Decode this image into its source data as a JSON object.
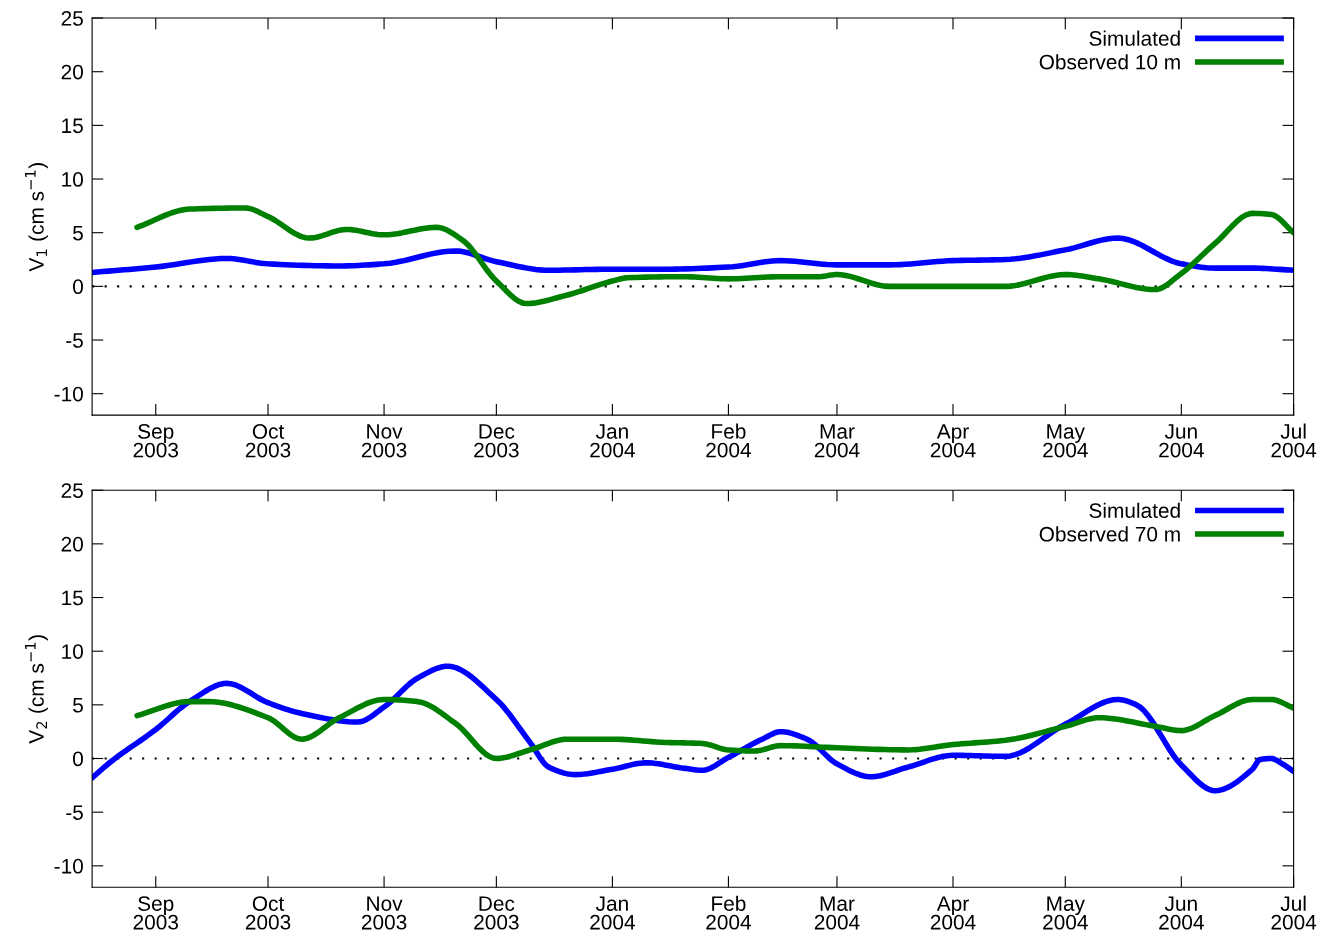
{
  "chart_data": [
    {
      "type": "line",
      "ylabel": "V$_{1}$ (cm s$^{−1}$)",
      "xlim": [
        "2003-08-15",
        "2004-07-01"
      ],
      "ylim": [
        -12,
        25
      ],
      "yticks": [
        -10,
        -5,
        0,
        5,
        10,
        15,
        20,
        25
      ],
      "xticks": [
        {
          "value": "2003-09-01",
          "label": "Sep\n2003"
        },
        {
          "value": "2003-10-01",
          "label": "Oct\n2003"
        },
        {
          "value": "2003-11-01",
          "label": "Nov\n2003"
        },
        {
          "value": "2003-12-01",
          "label": "Dec\n2003"
        },
        {
          "value": "2004-01-01",
          "label": "Jan\n2004"
        },
        {
          "value": "2004-02-01",
          "label": "Feb\n2004"
        },
        {
          "value": "2004-03-01",
          "label": "Mar\n2004"
        },
        {
          "value": "2004-04-01",
          "label": "Apr\n2004"
        },
        {
          "value": "2004-05-01",
          "label": "May\n2004"
        },
        {
          "value": "2004-06-01",
          "label": "Jun\n2004"
        },
        {
          "value": "2004-07-01",
          "label": "Jul\n2004"
        }
      ],
      "legend": "top right",
      "grid": false,
      "line_style": "solid",
      "marker": "none",
      "ref_lines": [
        {
          "axis": "y",
          "value": 0,
          "color": "#000000",
          "line_style": "dotted"
        }
      ],
      "series": [
        {
          "name": "Simulated",
          "color": "#0000ff",
          "x": [
            "2003-08-15",
            "2003-09-01",
            "2003-09-20",
            "2003-10-01",
            "2003-10-20",
            "2003-11-01",
            "2003-11-20",
            "2003-12-01",
            "2003-12-15",
            "2004-01-01",
            "2004-01-15",
            "2004-02-01",
            "2004-02-15",
            "2004-03-01",
            "2004-03-15",
            "2004-04-01",
            "2004-04-15",
            "2004-05-01",
            "2004-05-15",
            "2004-06-01",
            "2004-06-10",
            "2004-06-20",
            "2004-07-01"
          ],
          "values": [
            1.3,
            1.8,
            2.6,
            2.1,
            1.9,
            2.1,
            3.3,
            2.3,
            1.5,
            1.6,
            1.6,
            1.8,
            2.4,
            2.0,
            2.0,
            2.4,
            2.5,
            3.4,
            4.5,
            2.1,
            1.7,
            1.7,
            1.5
          ]
        },
        {
          "name": "Observed 10 m",
          "color": "#008000",
          "x": [
            "2003-08-27",
            "2003-09-10",
            "2003-09-25",
            "2003-10-01",
            "2003-10-12",
            "2003-10-22",
            "2003-11-01",
            "2003-11-15",
            "2003-11-22",
            "2003-12-01",
            "2003-12-09",
            "2003-12-20",
            "2004-01-01",
            "2004-01-05",
            "2004-01-20",
            "2004-02-01",
            "2004-02-15",
            "2004-02-25",
            "2004-03-01",
            "2004-03-15",
            "2004-04-01",
            "2004-04-15",
            "2004-05-01",
            "2004-05-10",
            "2004-05-25",
            "2004-06-01",
            "2004-06-10",
            "2004-06-20",
            "2004-06-25",
            "2004-07-01"
          ],
          "values": [
            5.5,
            7.2,
            7.3,
            6.5,
            4.5,
            5.3,
            4.8,
            5.5,
            4.3,
            0.5,
            -1.6,
            -0.8,
            0.5,
            0.8,
            0.9,
            0.7,
            0.9,
            0.9,
            1.1,
            0.0,
            0.0,
            0.0,
            1.1,
            0.7,
            -0.3,
            1.2,
            4.0,
            6.8,
            6.7,
            5.0
          ]
        }
      ]
    },
    {
      "type": "line",
      "ylabel": "V$_{2}$ (cm s$^{−1}$)",
      "xlim": [
        "2003-08-15",
        "2004-07-01"
      ],
      "ylim": [
        -12,
        25
      ],
      "yticks": [
        -10,
        -5,
        0,
        5,
        10,
        15,
        20,
        25
      ],
      "xticks": [
        {
          "value": "2003-09-01",
          "label": "Sep\n2003"
        },
        {
          "value": "2003-10-01",
          "label": "Oct\n2003"
        },
        {
          "value": "2003-11-01",
          "label": "Nov\n2003"
        },
        {
          "value": "2003-12-01",
          "label": "Dec\n2003"
        },
        {
          "value": "2004-01-01",
          "label": "Jan\n2004"
        },
        {
          "value": "2004-02-01",
          "label": "Feb\n2004"
        },
        {
          "value": "2004-03-01",
          "label": "Mar\n2004"
        },
        {
          "value": "2004-04-01",
          "label": "Apr\n2004"
        },
        {
          "value": "2004-05-01",
          "label": "May\n2004"
        },
        {
          "value": "2004-06-01",
          "label": "Jun\n2004"
        },
        {
          "value": "2004-07-01",
          "label": "Jul\n2004"
        }
      ],
      "legend": "top right",
      "grid": false,
      "line_style": "solid",
      "marker": "none",
      "ref_lines": [
        {
          "axis": "y",
          "value": 0,
          "color": "#000000",
          "line_style": "dotted"
        }
      ],
      "series": [
        {
          "name": "Simulated",
          "color": "#0000ff",
          "x": [
            "2003-08-15",
            "2003-08-20",
            "2003-09-01",
            "2003-09-10",
            "2003-09-20",
            "2003-10-01",
            "2003-10-10",
            "2003-10-25",
            "2003-11-01",
            "2003-11-10",
            "2003-11-18",
            "2003-12-01",
            "2003-12-10",
            "2003-12-15",
            "2003-12-22",
            "2004-01-01",
            "2004-01-10",
            "2004-01-20",
            "2004-01-25",
            "2004-02-01",
            "2004-02-10",
            "2004-02-15",
            "2004-02-22",
            "2004-03-01",
            "2004-03-10",
            "2004-03-20",
            "2004-04-01",
            "2004-04-15",
            "2004-05-01",
            "2004-05-15",
            "2004-05-20",
            "2004-06-01",
            "2004-06-10",
            "2004-06-20",
            "2004-06-22",
            "2004-06-25",
            "2004-06-28",
            "2004-07-01"
          ],
          "values": [
            -1.8,
            -0.3,
            2.7,
            5.3,
            7.0,
            5.2,
            4.2,
            3.4,
            4.8,
            7.5,
            8.6,
            5.5,
            1.5,
            -0.8,
            -1.5,
            -1.0,
            -0.4,
            -0.9,
            -1.1,
            0.1,
            1.8,
            2.5,
            1.8,
            -0.5,
            -1.7,
            -0.8,
            0.3,
            0.2,
            3.2,
            5.5,
            5.0,
            -0.6,
            -3.0,
            -1.0,
            -0.1,
            0.0,
            -0.5,
            -1.2
          ]
        },
        {
          "name": "Observed 70 m",
          "color": "#008000",
          "x": [
            "2003-08-27",
            "2003-09-10",
            "2003-09-15",
            "2003-10-01",
            "2003-10-10",
            "2003-10-20",
            "2003-11-01",
            "2003-11-10",
            "2003-11-20",
            "2003-12-01",
            "2003-12-10",
            "2003-12-20",
            "2004-01-01",
            "2004-01-15",
            "2004-01-25",
            "2004-02-01",
            "2004-02-08",
            "2004-02-15",
            "2004-03-01",
            "2004-03-20",
            "2004-04-01",
            "2004-04-15",
            "2004-05-01",
            "2004-05-10",
            "2004-05-25",
            "2004-06-01",
            "2004-06-10",
            "2004-06-20",
            "2004-06-25",
            "2004-07-01"
          ],
          "values": [
            4.0,
            5.3,
            5.3,
            3.8,
            1.8,
            3.8,
            5.5,
            5.3,
            3.3,
            0.0,
            0.8,
            1.8,
            1.8,
            1.5,
            1.4,
            0.8,
            0.7,
            1.2,
            1.0,
            0.8,
            1.3,
            1.7,
            3.0,
            3.8,
            3.0,
            2.6,
            4.0,
            5.5,
            5.5,
            4.7
          ]
        }
      ]
    }
  ]
}
